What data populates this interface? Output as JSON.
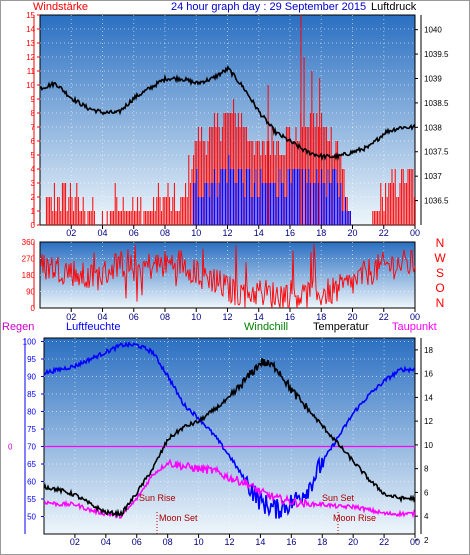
{
  "header": {
    "left": "Windstärke",
    "title": "24 hour graph day : 29 September 2015",
    "right": "Luftdruck"
  },
  "legend2": {
    "regen": "Regen",
    "luftfeuchte": "Luftfeuchte",
    "windchill": "Windchill",
    "temperatur": "Temperatur",
    "taupunkt": "Taupunkt"
  },
  "markers": {
    "sun_rise": "Sun Rise",
    "sun_set": "Sun Set",
    "moon_set": "Moon Set",
    "moon_rise": "Moon Rise"
  },
  "colors": {
    "sky_top": "#2a6fc1",
    "sky_bottom": "#eef6fb",
    "wind": "#ff0000",
    "gust": "#0000ff",
    "pressure": "#000000",
    "humidity": "#0000ff",
    "temperature": "#000000",
    "dewpoint": "#ff00ff",
    "axis_left": "#ff0000",
    "axis_right": "#000000",
    "axis_humidity": "#0000ff",
    "title": "#0000cc",
    "rain": "#cc00cc",
    "windchill": "#008000"
  },
  "chart_data": [
    {
      "type": "bar",
      "name": "wind-pressure",
      "x_ticks": [
        "02",
        "04",
        "06",
        "08",
        "10",
        "12",
        "14",
        "16",
        "18",
        "20",
        "22",
        "00"
      ],
      "ylim_left": [
        0,
        15
      ],
      "y_ticks_left": [
        "0",
        "1",
        "2",
        "3",
        "4",
        "5",
        "6",
        "7",
        "8",
        "9",
        "10",
        "11",
        "12",
        "13",
        "14",
        "15"
      ],
      "ylim_right": [
        1036.0,
        1040.3
      ],
      "y_ticks_right": [
        "1036.5",
        "1037",
        "1037.5",
        "1038",
        "1038.5",
        "1039",
        "1039.5",
        "1040"
      ],
      "series": [
        {
          "name": "Windstärke",
          "axis": "left",
          "values_hourly": [
            0,
            2,
            2,
            1,
            0,
            2,
            1,
            1,
            2,
            1,
            6,
            6,
            8,
            7,
            5,
            6,
            6,
            7,
            7,
            6,
            0,
            0,
            2,
            3
          ]
        },
        {
          "name": "Luftdruck",
          "axis": "right",
          "values_hourly": [
            1038.8,
            1038.9,
            1038.6,
            1038.4,
            1038.3,
            1038.3,
            1038.6,
            1038.8,
            1039.0,
            1039.0,
            1038.9,
            1039.0,
            1039.2,
            1038.8,
            1038.3,
            1037.9,
            1037.7,
            1037.5,
            1037.4,
            1037.4,
            1037.5,
            1037.6,
            1037.9,
            1038.0
          ]
        }
      ]
    },
    {
      "type": "line",
      "name": "wind-direction",
      "x_ticks": [
        "02",
        "04",
        "06",
        "08",
        "10",
        "12",
        "14",
        "16",
        "18",
        "20",
        "22",
        "00"
      ],
      "ylim": [
        0,
        360
      ],
      "y_ticks": [
        "0",
        "90",
        "180",
        "270",
        "360"
      ],
      "compass": [
        "N",
        "W",
        "S",
        "O",
        "N"
      ],
      "series": [
        {
          "name": "Windrichtung",
          "values_hourly": [
            230,
            220,
            200,
            160,
            180,
            250,
            220,
            230,
            240,
            250,
            200,
            160,
            100,
            80,
            90,
            70,
            80,
            70,
            80,
            100,
            140,
            200,
            230,
            240
          ]
        }
      ]
    },
    {
      "type": "line",
      "name": "humidity-temperature",
      "x_ticks": [
        "02",
        "04",
        "06",
        "08",
        "10",
        "12",
        "14",
        "16",
        "18",
        "20",
        "22",
        "00"
      ],
      "ylim_left": [
        45,
        101
      ],
      "y_ticks_left": [
        "50",
        "55",
        "60",
        "65",
        "70",
        "75",
        "80",
        "85",
        "90",
        "95",
        "100"
      ],
      "ylim_right": [
        2.5,
        19
      ],
      "y_ticks_right": [
        "2",
        "4",
        "6",
        "8",
        "10",
        "12",
        "14",
        "16",
        "18"
      ],
      "rain_marker": "0",
      "series": [
        {
          "name": "Luftfeuchte",
          "axis": "left",
          "values_hourly": [
            91,
            92,
            93,
            95,
            97,
            99,
            99,
            97,
            90,
            82,
            78,
            73,
            67,
            60,
            54,
            52,
            54,
            58,
            66,
            73,
            80,
            85,
            89,
            92
          ]
        },
        {
          "name": "Temperatur",
          "axis": "right",
          "values_hourly": [
            6.5,
            6.2,
            5.8,
            5.0,
            4.3,
            4.2,
            6.0,
            8.0,
            10.5,
            11.5,
            12.0,
            13.0,
            14.0,
            15.5,
            17.0,
            16.5,
            14.5,
            13.0,
            11.5,
            10.0,
            8.5,
            7.0,
            5.8,
            5.5
          ]
        },
        {
          "name": "Taupunkt",
          "axis": "right",
          "values_hourly": [
            5.2,
            5.0,
            5.0,
            4.5,
            4.2,
            4.0,
            5.5,
            7.5,
            8.5,
            8.2,
            8.0,
            7.8,
            7.2,
            6.8,
            6.0,
            5.5,
            5.2,
            5.0,
            5.0,
            4.8,
            4.8,
            4.5,
            4.2,
            4.2
          ]
        }
      ]
    }
  ]
}
